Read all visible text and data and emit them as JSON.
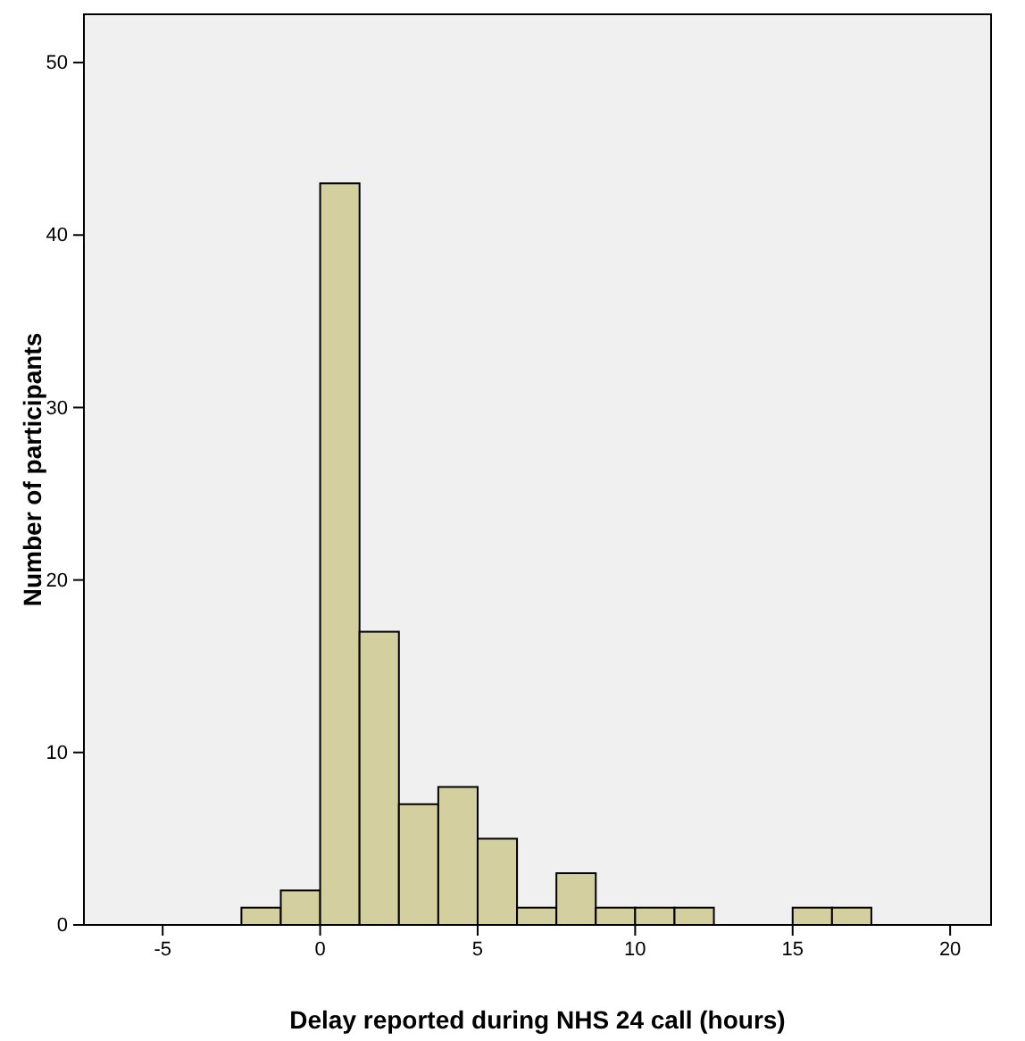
{
  "chart_data": {
    "type": "histogram",
    "xlabel": "Delay reported during NHS 24 call (hours)",
    "ylabel": "Number of participants",
    "bins": [
      -2.5,
      -1.25,
      0,
      1.25,
      2.5,
      3.75,
      5,
      6.25,
      7.5,
      8.75,
      10,
      11.25,
      12.5,
      13.75,
      15,
      16.25,
      17.5
    ],
    "values": [
      1,
      2,
      43,
      17,
      7,
      8,
      5,
      1,
      3,
      1,
      1,
      1,
      0,
      0,
      1,
      1
    ],
    "color": "#d4cf9e",
    "xlim": [
      -7.5,
      21.3
    ],
    "xticks": [
      -5,
      0,
      5,
      10,
      15,
      20
    ],
    "ylim": [
      0,
      52.8
    ],
    "yticks": [
      0,
      10,
      20,
      30,
      40,
      50
    ],
    "grid": false
  }
}
